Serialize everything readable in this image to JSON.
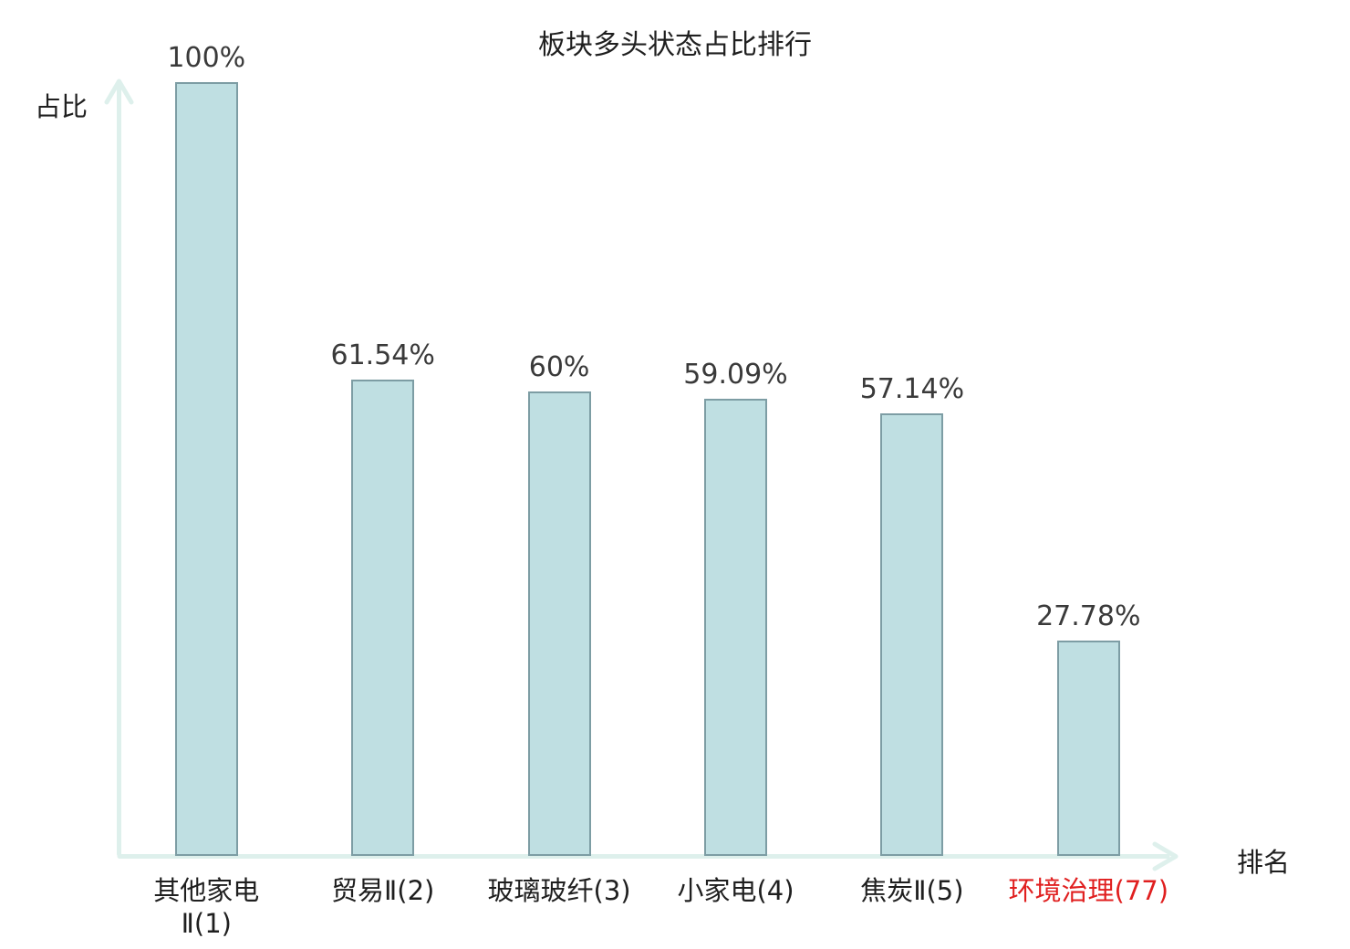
{
  "title": "板块多头状态占比排行",
  "chart_data": {
    "type": "bar",
    "title": "板块多头状态占比排行",
    "xlabel": "排名",
    "ylabel": "占比",
    "categories": [
      "其他家电Ⅱ(1)",
      "贸易Ⅱ(2)",
      "玻璃玻纤(3)",
      "小家电(4)",
      "焦炭Ⅱ(5)",
      "环境治理(77)"
    ],
    "tick_labels": [
      "其他家电\nⅡ(1)",
      "贸易Ⅱ(2)",
      "玻璃玻纤(3)",
      "小家电(4)",
      "焦炭Ⅱ(5)",
      "环境治理(77)"
    ],
    "values": [
      100,
      61.54,
      60,
      59.09,
      57.14,
      27.78
    ],
    "value_labels": [
      "100%",
      "61.54%",
      "60%",
      "59.09%",
      "57.14%",
      "27.78%"
    ],
    "ylim": [
      0,
      100
    ],
    "grid": false,
    "legend": null,
    "highlight_index": 5
  },
  "colors": {
    "background": "#ffffff",
    "bar_fill": "#bfdfe2",
    "bar_border": "#7d9da4",
    "axis": "#def0ec",
    "text": "#1f1f1f",
    "value_text": "#3a3a3a",
    "highlight": "#e01f1f"
  }
}
